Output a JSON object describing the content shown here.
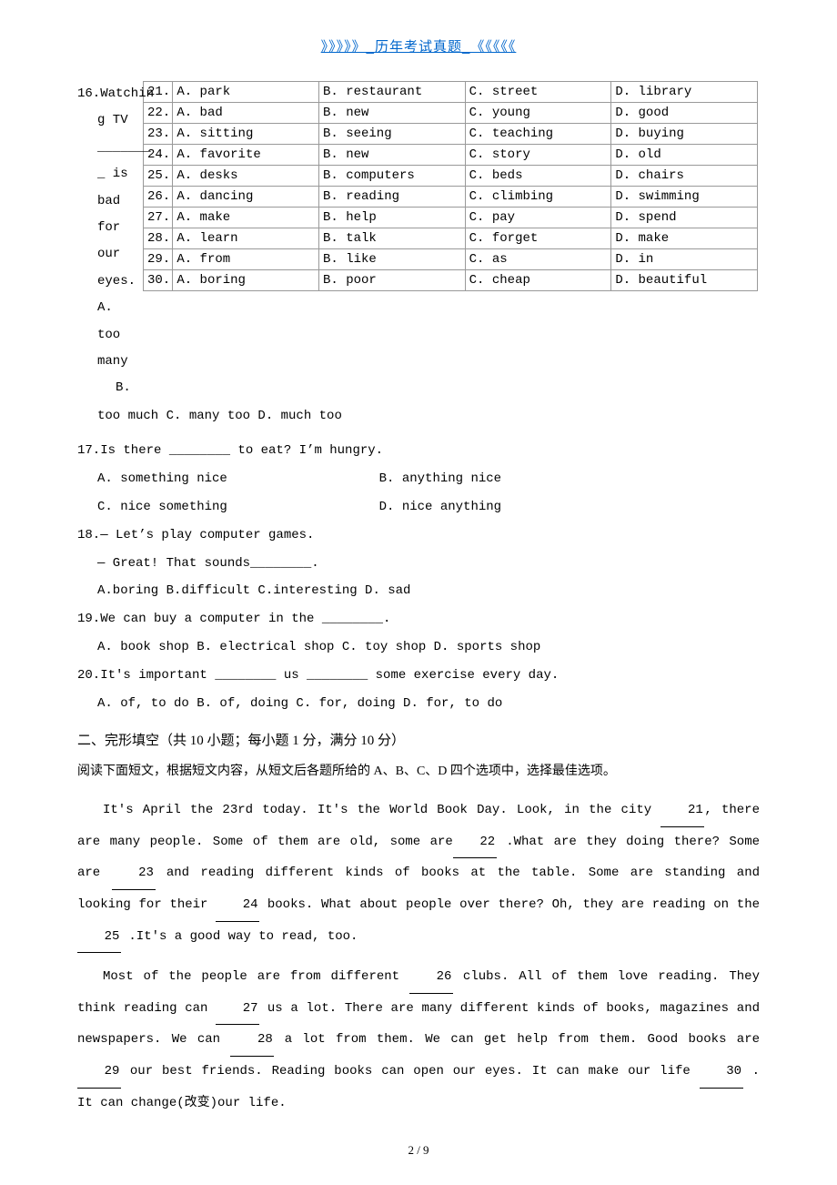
{
  "header": {
    "link_text": "》》》》》_历年考试真题_《《《《《"
  },
  "q16": {
    "stem_prefix": "16.Watchin",
    "stem_l2": "g TV",
    "stem_gap": "_______",
    "stem_l3": "_ is bad",
    "stem_l4": "for our",
    "stem_l5": "eyes.",
    "optA": "A. too",
    "optA2": "many",
    "optB": "B.",
    "tail": "too much       C. many too       D. much too"
  },
  "table_rows": [
    {
      "n": "21.",
      "a": "A. park",
      "b": "B. restaurant",
      "c": "C. street",
      "d": "D. library"
    },
    {
      "n": "22.",
      "a": "A. bad",
      "b": "B. new",
      "c": "C. young",
      "d": "D. good"
    },
    {
      "n": "23.",
      "a": "A. sitting",
      "b": "B. seeing",
      "c": "C. teaching",
      "d": "D. buying"
    },
    {
      "n": "24.",
      "a": "A. favorite",
      "b": "B. new",
      "c": "C. story",
      "d": "D. old"
    },
    {
      "n": "25.",
      "a": "A. desks",
      "b": "B. computers",
      "c": "C. beds",
      "d": "D. chairs"
    },
    {
      "n": "26.",
      "a": "A. dancing",
      "b": "B. reading",
      "c": "C. climbing",
      "d": "D. swimming"
    },
    {
      "n": "27.",
      "a": "A. make",
      "b": "B. help",
      "c": "C. pay",
      "d": "D. spend"
    },
    {
      "n": "28.",
      "a": "A. learn",
      "b": "B. talk",
      "c": "C. forget",
      "d": "D. make"
    },
    {
      "n": "29.",
      "a": "A. from",
      "b": "B. like",
      "c": "C. as",
      "d": "D. in"
    },
    {
      "n": "30.",
      "a": "A. boring",
      "b": "B. poor",
      "c": "C. cheap",
      "d": "D. beautiful"
    }
  ],
  "q17": {
    "stem": "17.Is there ________ to eat? I’m hungry.",
    "a": "A. something nice",
    "b": "B. anything nice",
    "c": "C. nice something",
    "d": "D. nice anything"
  },
  "q18": {
    "stem": "18.— Let’s play computer games.",
    "reply": "— Great! That sounds________.",
    "opts": "A.boring        B.difficult       C.interesting       D. sad"
  },
  "q19": {
    "stem": "19.We can buy a computer in the ________.",
    "opts": "A. book shop     B. electrical shop     C. toy shop    D. sports shop"
  },
  "q20": {
    "stem": "20.It's important ________ us ________ some exercise every day.",
    "opts": "A. of,  to do     B. of,  doing     C. for,  doing      D. for,  to do"
  },
  "section2": {
    "title": "二、完形填空（共 10 小题；每小题 1 分，满分 10 分）",
    "instr": "阅读下面短文，根据短文内容，从短文后各题所给的 A、B、C、D 四个选项中，选择最佳选项。"
  },
  "passage": {
    "p1a": "It's April the 23rd today. It's the World Book Day. Look, in the city ",
    "b21": "21",
    "p1b": ", there are many people. Some of them are old,  some are",
    "b22": "22",
    "p1c": "  .What are they doing there? Some are    ",
    "b23": "23",
    "p1d": "    and reading different kinds of books at the table. Some are standing and looking for their   ",
    "b24": "24",
    "p1e": "    books. What about people over there? Oh,  they are reading on the  ",
    "b25": "25",
    "p1f": "   .It's a good way to read,  too.",
    "p2a": "Most of the people are from different  ",
    "b26": "26",
    "p2b": " clubs. All of them love reading. They think reading can ",
    "b27": "27",
    "p2c": " us a lot. There are many different kinds of books,  magazines and newspapers. We can ",
    "b28": "28",
    "p2d": " a lot from them. We can get help from them.  Good books are ",
    "b29": "29",
    "p2e": "  our best friends. Reading books can open our eyes. It can make our life ",
    "b30": "30",
    "p2f": "  . It can change(改变)our life."
  },
  "footer": {
    "page": "2 / 9"
  }
}
